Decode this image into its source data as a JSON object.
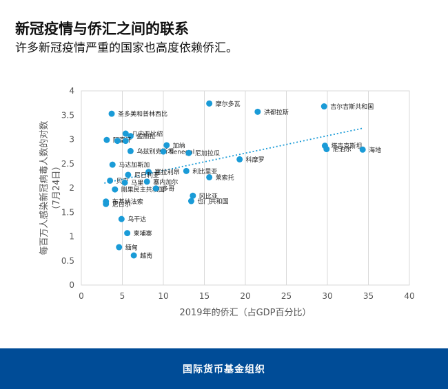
{
  "header": {
    "title": "新冠疫情与侨汇之间的联系",
    "subtitle": "许多新冠疫情严重的国家也高度依赖侨汇。"
  },
  "footer": {
    "label": "国际货币基金组织"
  },
  "colors": {
    "accent": "#1a9bd7",
    "footer": "#004c97",
    "trend": "#1a9bd7"
  },
  "chart_data": {
    "type": "scatter",
    "xlabel": "2019年的侨汇（占GDP百分比）",
    "ylabel_line1": "每百万人感染新冠病毒人数的对数",
    "ylabel_line2": "（7月24日）",
    "xlim": [
      0,
      40
    ],
    "ylim": [
      0,
      4
    ],
    "xticks": [
      0,
      5,
      10,
      15,
      20,
      25,
      30,
      35,
      40
    ],
    "yticks": [
      0,
      0.5,
      1,
      1.5,
      2,
      2.5,
      3,
      3.5,
      4
    ],
    "trendline": {
      "x": [
        2.8,
        34.3
      ],
      "y": [
        2.1,
        3.23
      ]
    },
    "points": [
      {
        "label": "圣多美和普林西比",
        "x": 3.7,
        "y": 3.53
      },
      {
        "label": "几内亚比绍",
        "x": 5.4,
        "y": 3.12
      },
      {
        "label": "孟加拉",
        "x": 6.0,
        "y": 3.07
      },
      {
        "label": "阿富汗",
        "x": 3.1,
        "y": 2.99
      },
      {
        "label": "",
        "x": 4.4,
        "y": 2.97
      },
      {
        "label": "",
        "x": 5.4,
        "y": 2.97
      },
      {
        "label": "加纳",
        "x": 10.4,
        "y": 2.88
      },
      {
        "label": "乌兹别克斯坦",
        "x": 6.0,
        "y": 2.76
      },
      {
        "label": "Senegal",
        "x": 10.0,
        "y": 2.75
      },
      {
        "label": "尼加拉瓜",
        "x": 13.1,
        "y": 2.72
      },
      {
        "label": "科摩罗",
        "x": 19.3,
        "y": 2.59
      },
      {
        "label": "马达加斯加",
        "x": 3.8,
        "y": 2.48
      },
      {
        "label": "利比里亚",
        "x": 12.8,
        "y": 2.35
      },
      {
        "label": "塞拉利昂",
        "x": 8.2,
        "y": 2.33
      },
      {
        "label": "尼日利亚",
        "x": 5.7,
        "y": 2.27
      },
      {
        "label": "莱索托",
        "x": 15.6,
        "y": 2.22
      },
      {
        "label": "贝宁",
        "x": 3.5,
        "y": 2.15
      },
      {
        "label": "马里",
        "x": 5.3,
        "y": 2.11
      },
      {
        "label": "塞内加尔",
        "x": 8.0,
        "y": 2.13
      },
      {
        "label": "刚果民主共和国",
        "x": 4.1,
        "y": 1.97
      },
      {
        "label": "多哥",
        "x": 9.1,
        "y": 1.99
      },
      {
        "label": "冈比亚",
        "x": 13.6,
        "y": 1.84
      },
      {
        "label": "也门共和国",
        "x": 13.4,
        "y": 1.73
      },
      {
        "label": "布基纳法索",
        "x": 3.0,
        "y": 1.72
      },
      {
        "label": "尼日尔",
        "x": 3.0,
        "y": 1.67
      },
      {
        "label": "乌干达",
        "x": 4.9,
        "y": 1.36
      },
      {
        "label": "柬埔寨",
        "x": 5.6,
        "y": 1.07
      },
      {
        "label": "缅甸",
        "x": 4.6,
        "y": 0.78
      },
      {
        "label": "越南",
        "x": 6.4,
        "y": 0.61
      },
      {
        "label": "摩尔多瓦",
        "x": 15.6,
        "y": 3.74
      },
      {
        "label": "洪都拉斯",
        "x": 21.5,
        "y": 3.57
      },
      {
        "label": "吉尔吉斯共和国",
        "x": 29.6,
        "y": 3.68
      },
      {
        "label": "塔吉克斯坦",
        "x": 29.7,
        "y": 2.87
      },
      {
        "label": "尼泊尔",
        "x": 29.9,
        "y": 2.8
      },
      {
        "label": "海地",
        "x": 34.3,
        "y": 2.79
      }
    ]
  }
}
